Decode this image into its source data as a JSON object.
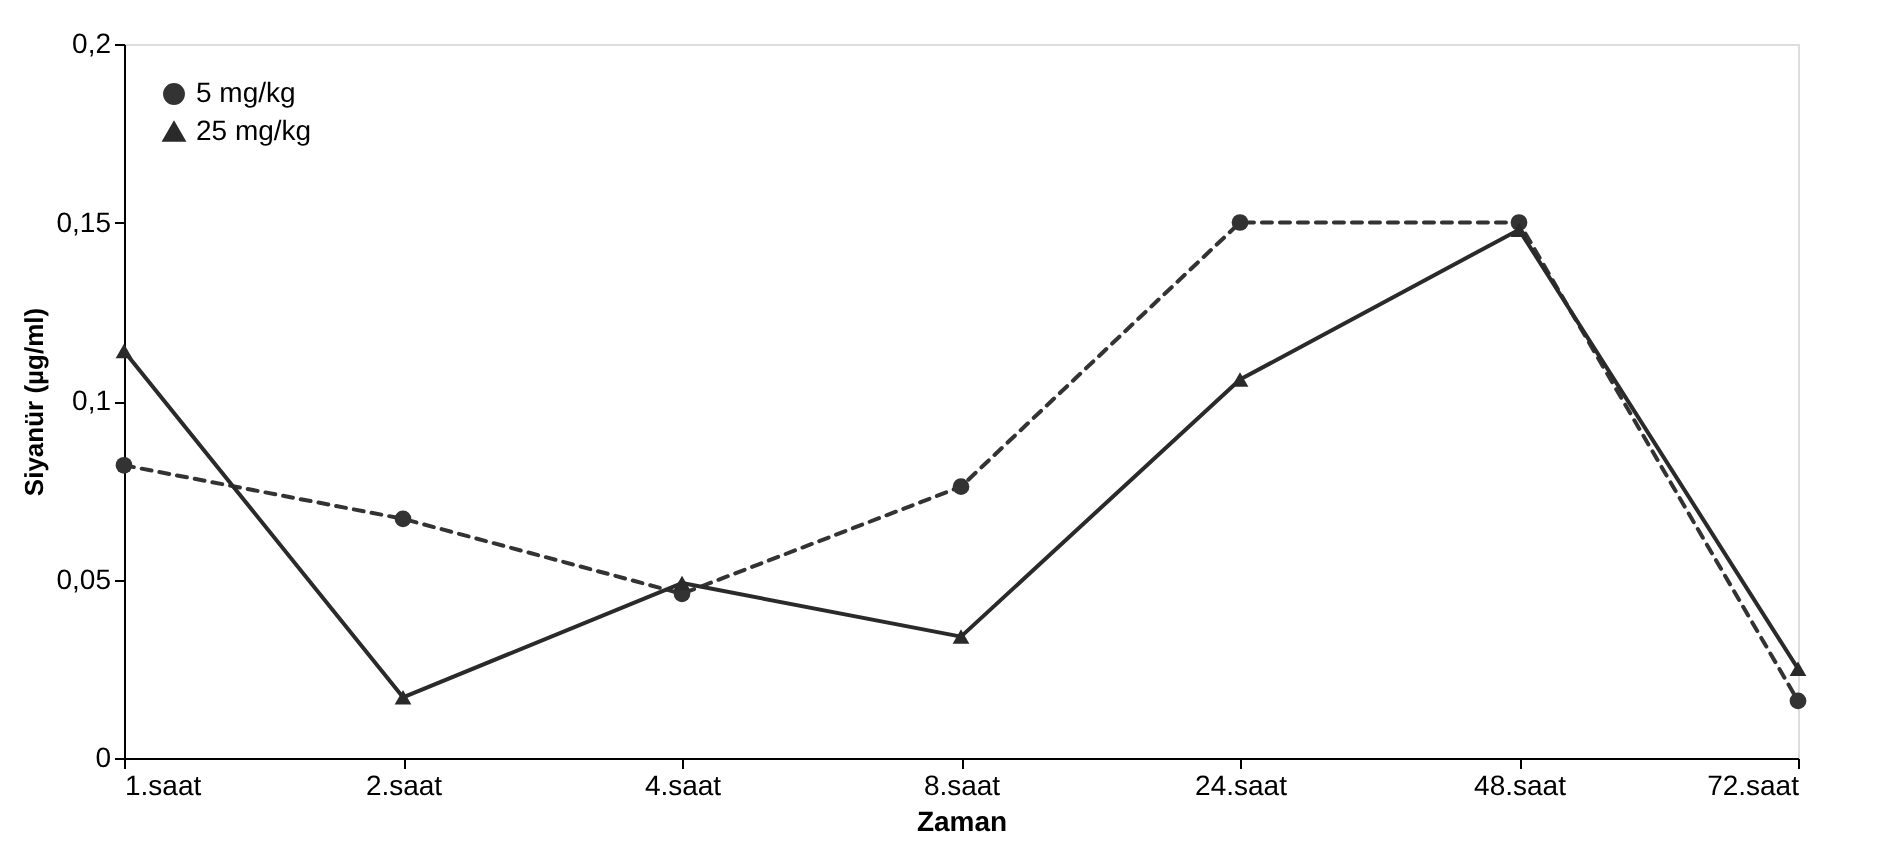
{
  "chart_data": {
    "type": "line",
    "xlabel": "Zaman",
    "ylabel": "Siyanür (µg/ml)",
    "categories": [
      "1.saat",
      "2.saat",
      "4.saat",
      "8.saat",
      "24.saat",
      "48.saat",
      "72.saat"
    ],
    "series": [
      {
        "name": "5 mg/kg",
        "color": "#333333",
        "marker": "circle",
        "line_style": "dashed",
        "values": [
          0.082,
          0.067,
          0.046,
          0.076,
          0.15,
          0.15,
          0.016
        ]
      },
      {
        "name": "25 mg/kg",
        "color": "#2a2a2a",
        "marker": "triangle",
        "line_style": "solid",
        "values": [
          0.114,
          0.017,
          0.049,
          0.034,
          0.106,
          0.148,
          0.025
        ]
      }
    ],
    "ylim": [
      0,
      0.2
    ],
    "yticks": [
      {
        "value": 0,
        "label": "0"
      },
      {
        "value": 0.05,
        "label": "0,05"
      },
      {
        "value": 0.1,
        "label": "0,1"
      },
      {
        "value": 0.15,
        "label": "0,15"
      },
      {
        "value": 0.2,
        "label": "0,2"
      }
    ],
    "grid": false,
    "legend": "top left"
  }
}
